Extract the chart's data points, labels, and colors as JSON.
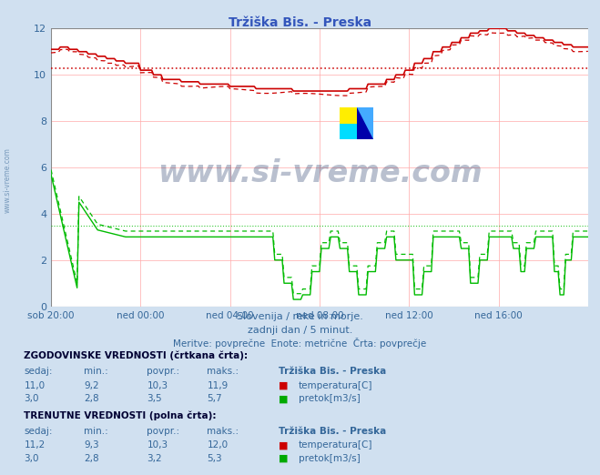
{
  "title": "Tržiška Bis. - Preska",
  "bg_color": "#d0e0f0",
  "plot_bg_color": "#ffffff",
  "grid_color_h": "#ffcccc",
  "grid_color_v": "#ffcccc",
  "x_labels": [
    "sob 20:00",
    "ned 00:00",
    "ned 04:00",
    "ned 08:00",
    "ned 12:00",
    "ned 16:00"
  ],
  "x_ticks": [
    0,
    48,
    96,
    144,
    192,
    240
  ],
  "x_max": 288,
  "y_min": 0,
  "y_max": 12,
  "y_ticks": [
    0,
    2,
    4,
    6,
    8,
    10,
    12
  ],
  "temp_avg_line": 10.3,
  "flow_avg_dashed_line": 3.5,
  "subtitle1": "Slovenija / reke in morje.",
  "subtitle2": "zadnji dan / 5 minut.",
  "subtitle3": "Meritve: povprečne  Enote: metrične  Črta: povprečje",
  "temp_color": "#cc0000",
  "flow_color": "#00bb00",
  "watermark": "www.si-vreme.com",
  "watermark_color": "#1a3060",
  "title_color": "#3355bb"
}
